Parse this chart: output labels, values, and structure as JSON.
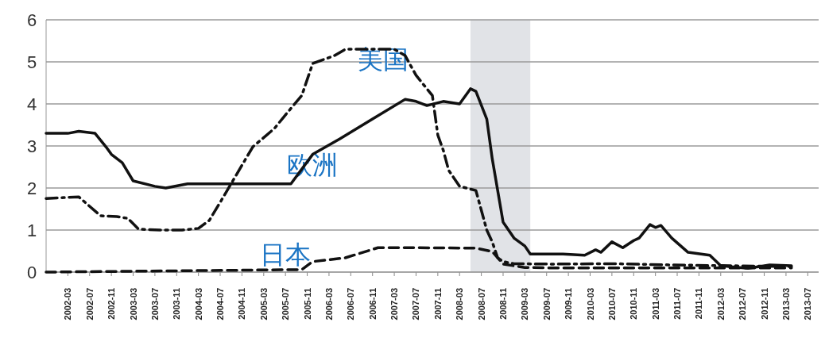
{
  "chart_data": {
    "type": "line",
    "xlim": [
      "2001-11",
      "2013-09"
    ],
    "ylim": [
      0,
      6
    ],
    "yticks": [
      0,
      1,
      2,
      3,
      4,
      5,
      6
    ],
    "xticks": [
      "2002-03",
      "2002-07",
      "2002-11",
      "2003-03",
      "2003-07",
      "2003-11",
      "2004-03",
      "2004-07",
      "2004-11",
      "2005-03",
      "2005-07",
      "2005-11",
      "2006-03",
      "2006-07",
      "2006-11",
      "2007-03",
      "2007-07",
      "2007-11",
      "2008-03",
      "2008-07",
      "2008-11",
      "2009-03",
      "2009-07",
      "2009-11",
      "2010-03",
      "2010-07",
      "2010-11",
      "2011-03",
      "2011-07",
      "2011-11",
      "2012-03",
      "2012-07",
      "2012-11",
      "2013-03",
      "2013-07"
    ],
    "grid": "y",
    "marker": "none",
    "series": [
      {
        "color": "#111111",
        "line_style": "solid",
        "x": [
          "2001-11",
          "2002-03",
          "2002-05",
          "2002-08",
          "2002-10",
          "2002-11",
          "2003-01",
          "2003-03",
          "2003-07",
          "2003-09",
          "2004-01",
          "2005-08",
          "2005-12",
          "2006-05",
          "2006-11",
          "2007-05",
          "2007-07",
          "2007-09",
          "2007-12",
          "2008-03",
          "2008-05",
          "2008-06",
          "2008-08",
          "2008-09",
          "2008-11",
          "2009-01",
          "2009-03",
          "2009-04",
          "2009-10",
          "2010-02",
          "2010-04",
          "2010-05",
          "2010-07",
          "2010-09",
          "2010-11",
          "2010-12",
          "2011-02",
          "2011-03",
          "2011-04",
          "2011-06",
          "2011-09",
          "2012-01",
          "2012-03",
          "2012-08",
          "2012-12",
          "2013-04"
        ],
        "values": [
          3.3,
          3.3,
          3.35,
          3.3,
          2.98,
          2.8,
          2.6,
          2.17,
          2.04,
          2.0,
          2.1,
          2.1,
          2.8,
          3.17,
          3.64,
          4.11,
          4.06,
          3.96,
          4.06,
          4.0,
          4.36,
          4.3,
          3.64,
          2.7,
          1.19,
          0.81,
          0.62,
          0.43,
          0.43,
          0.4,
          0.53,
          0.47,
          0.72,
          0.58,
          0.75,
          0.81,
          1.13,
          1.06,
          1.11,
          0.81,
          0.47,
          0.4,
          0.15,
          0.09,
          0.17,
          0.15
        ]
      },
      {
        "color": "#111111",
        "line_style": "dotted",
        "x": [
          "2001-11",
          "2002-05",
          "2002-09",
          "2002-12",
          "2003-02",
          "2003-04",
          "2003-08",
          "2003-12",
          "2004-03",
          "2004-05",
          "2004-07",
          "2004-10",
          "2005-01",
          "2005-05",
          "2005-07",
          "2005-10",
          "2005-12",
          "2006-04",
          "2006-06",
          "2006-12",
          "2007-03",
          "2007-05",
          "2007-07",
          "2007-10",
          "2007-11",
          "2007-12",
          "2008-01",
          "2008-03",
          "2008-06",
          "2008-08",
          "2008-09",
          "2008-10",
          "2008-11",
          "2009-01",
          "2009-08",
          "2010-07",
          "2011-06",
          "2013-04"
        ],
        "values": [
          1.75,
          1.79,
          1.34,
          1.32,
          1.28,
          1.02,
          1.0,
          1.0,
          1.04,
          1.23,
          1.66,
          2.32,
          2.98,
          3.42,
          3.74,
          4.2,
          4.96,
          5.15,
          5.3,
          5.3,
          5.3,
          5.15,
          4.68,
          4.2,
          3.26,
          2.9,
          2.42,
          2.04,
          1.94,
          1.0,
          0.72,
          0.34,
          0.25,
          0.2,
          0.19,
          0.2,
          0.17,
          0.13
        ]
      },
      {
        "color": "#111111",
        "line_style": "dashed",
        "x": [
          "2001-11",
          "2005-10",
          "2005-12",
          "2006-06",
          "2006-12",
          "2007-06",
          "2008-06",
          "2008-09",
          "2008-11",
          "2009-03",
          "2009-08",
          "2013-04"
        ],
        "values": [
          0,
          0.06,
          0.25,
          0.34,
          0.58,
          0.58,
          0.57,
          0.49,
          0.19,
          0.11,
          0.1,
          0.1
        ]
      }
    ],
    "bands": [
      {
        "axis": "x",
        "from": "2008-05",
        "to": "2009-04",
        "color": "#e1e3e7"
      }
    ],
    "annotations": [
      {
        "text": "美国",
        "x": "2007-01",
        "y": 5.3
      },
      {
        "text": "欧洲",
        "x": "2005-12",
        "y": 2.8
      },
      {
        "text": "日本",
        "x": "2005-07",
        "y": 0.05
      }
    ]
  }
}
